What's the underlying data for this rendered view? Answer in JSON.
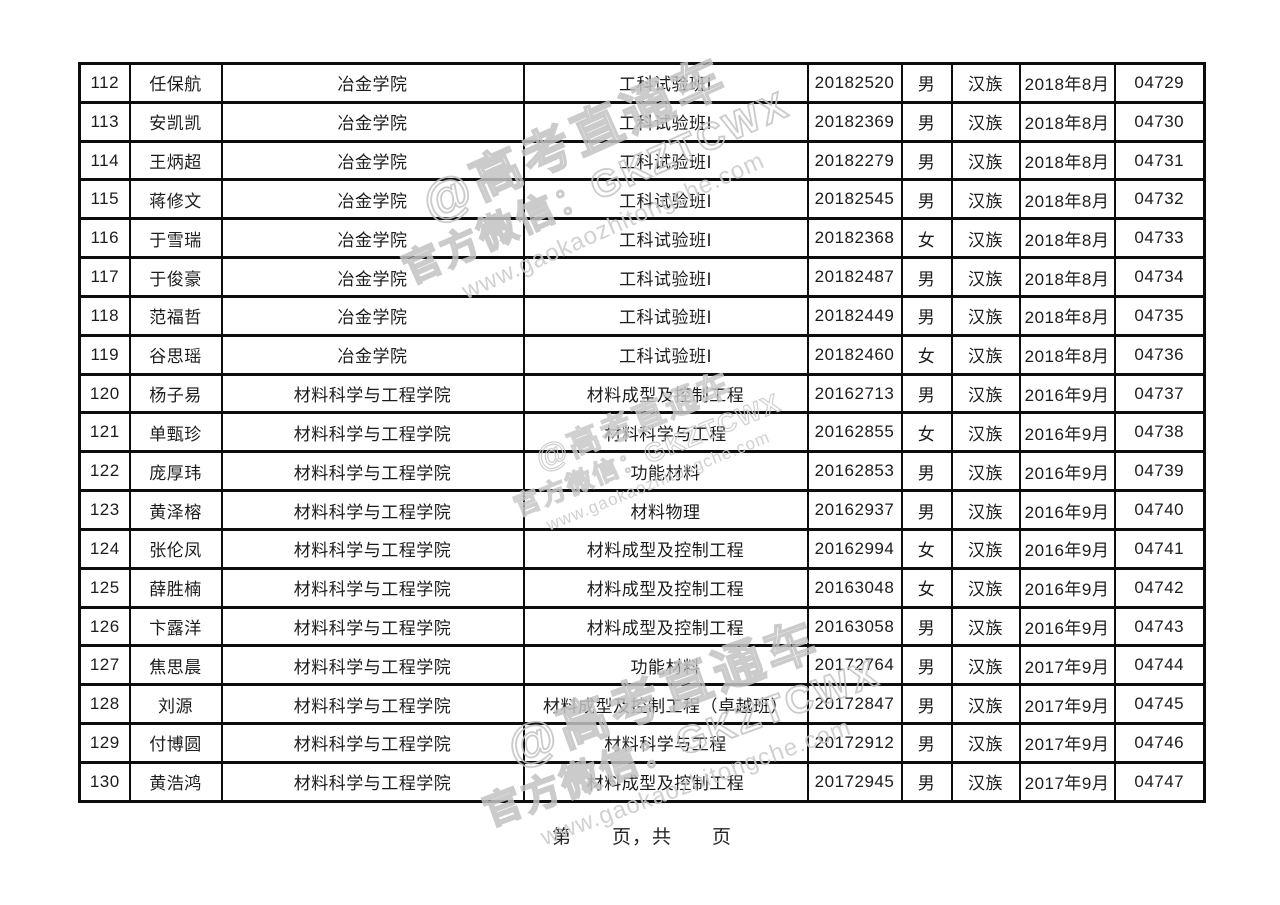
{
  "watermark": {
    "line1": "@高考直通车",
    "line2": "官方微信：GKZTCWX",
    "line3": "www.gaokaozhitongche.com"
  },
  "footer": {
    "text": "第　　页，共　　页"
  },
  "table": {
    "rows": [
      [
        "112",
        "任保航",
        "冶金学院",
        "工科试验班Ⅰ",
        "20182520",
        "男",
        "汉族",
        "2018年8月",
        "04729"
      ],
      [
        "113",
        "安凯凯",
        "冶金学院",
        "工科试验班Ⅰ",
        "20182369",
        "男",
        "汉族",
        "2018年8月",
        "04730"
      ],
      [
        "114",
        "王炳超",
        "冶金学院",
        "工科试验班Ⅰ",
        "20182279",
        "男",
        "汉族",
        "2018年8月",
        "04731"
      ],
      [
        "115",
        "蒋修文",
        "冶金学院",
        "工科试验班Ⅰ",
        "20182545",
        "男",
        "汉族",
        "2018年8月",
        "04732"
      ],
      [
        "116",
        "于雪瑞",
        "冶金学院",
        "工科试验班Ⅰ",
        "20182368",
        "女",
        "汉族",
        "2018年8月",
        "04733"
      ],
      [
        "117",
        "于俊豪",
        "冶金学院",
        "工科试验班Ⅰ",
        "20182487",
        "男",
        "汉族",
        "2018年8月",
        "04734"
      ],
      [
        "118",
        "范福哲",
        "冶金学院",
        "工科试验班Ⅰ",
        "20182449",
        "男",
        "汉族",
        "2018年8月",
        "04735"
      ],
      [
        "119",
        "谷思瑶",
        "冶金学院",
        "工科试验班Ⅰ",
        "20182460",
        "女",
        "汉族",
        "2018年8月",
        "04736"
      ],
      [
        "120",
        "杨子易",
        "材料科学与工程学院",
        "材料成型及控制工程",
        "20162713",
        "男",
        "汉族",
        "2016年9月",
        "04737"
      ],
      [
        "121",
        "单甄珍",
        "材料科学与工程学院",
        "材料科学与工程",
        "20162855",
        "女",
        "汉族",
        "2016年9月",
        "04738"
      ],
      [
        "122",
        "庞厚玮",
        "材料科学与工程学院",
        "功能材料",
        "20162853",
        "男",
        "汉族",
        "2016年9月",
        "04739"
      ],
      [
        "123",
        "黄泽榕",
        "材料科学与工程学院",
        "材料物理",
        "20162937",
        "男",
        "汉族",
        "2016年9月",
        "04740"
      ],
      [
        "124",
        "张伦凤",
        "材料科学与工程学院",
        "材料成型及控制工程",
        "20162994",
        "女",
        "汉族",
        "2016年9月",
        "04741"
      ],
      [
        "125",
        "薛胜楠",
        "材料科学与工程学院",
        "材料成型及控制工程",
        "20163048",
        "女",
        "汉族",
        "2016年9月",
        "04742"
      ],
      [
        "126",
        "卞露洋",
        "材料科学与工程学院",
        "材料成型及控制工程",
        "20163058",
        "男",
        "汉族",
        "2016年9月",
        "04743"
      ],
      [
        "127",
        "焦思晨",
        "材料科学与工程学院",
        "功能材料",
        "20172764",
        "男",
        "汉族",
        "2017年9月",
        "04744"
      ],
      [
        "128",
        "刘源",
        "材料科学与工程学院",
        "材料成型及控制工程（卓越班）",
        "20172847",
        "男",
        "汉族",
        "2017年9月",
        "04745"
      ],
      [
        "129",
        "付博圆",
        "材料科学与工程学院",
        "材料科学与工程",
        "20172912",
        "男",
        "汉族",
        "2017年9月",
        "04746"
      ],
      [
        "130",
        "黄浩鸿",
        "材料科学与工程学院",
        "材料成型及控制工程",
        "20172945",
        "男",
        "汉族",
        "2017年9月",
        "04747"
      ]
    ]
  },
  "colors": {
    "border": "#0d0d0d",
    "text": "#1c1c1c",
    "watermark": "#c6c6c6"
  }
}
